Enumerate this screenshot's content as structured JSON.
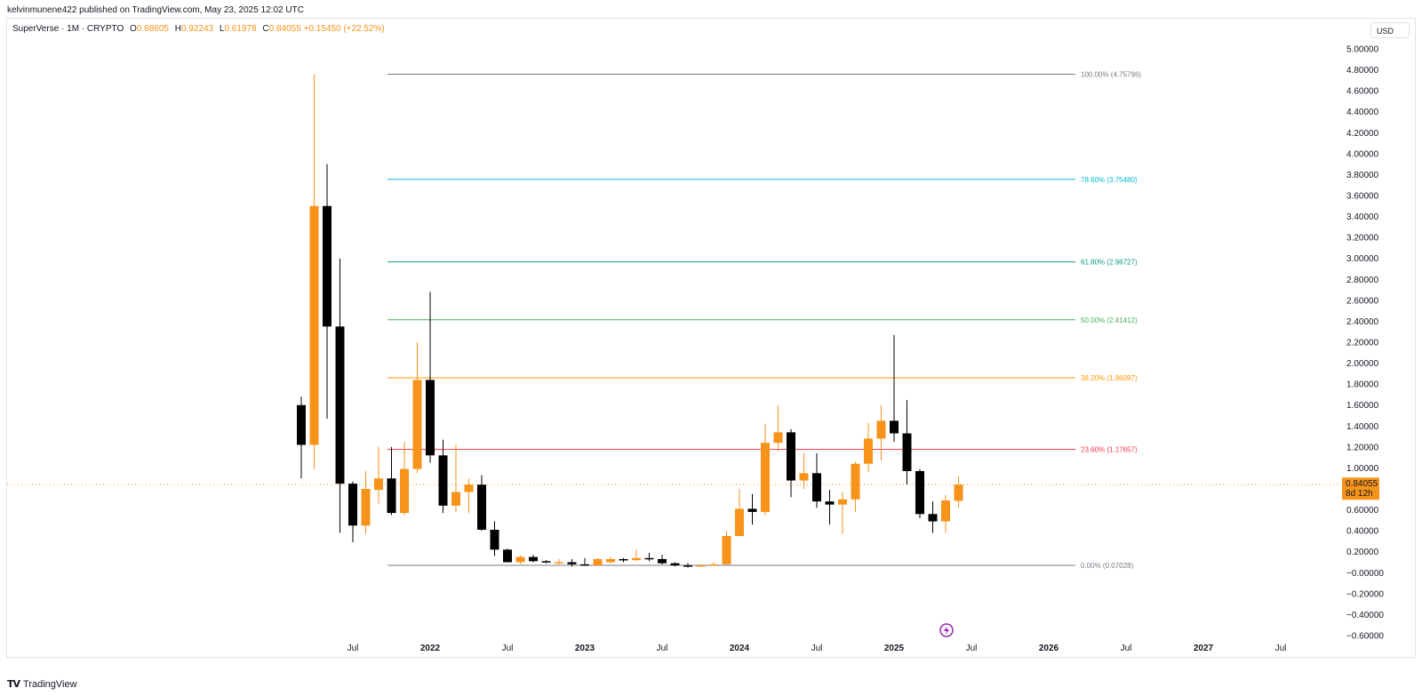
{
  "header": {
    "published": "kelvinmunene422 published on TradingView.com, May 23, 2025 12:02 UTC"
  },
  "legend": {
    "symbol": "SuperVerse · 1M · CRYPTO",
    "o_label": "O",
    "o_value": "0.68605",
    "h_label": "H",
    "h_value": "0.92243",
    "l_label": "L",
    "l_value": "0.61978",
    "c_label": "C",
    "c_value": "0.84055",
    "change": "+0.15450 (+22.52%)"
  },
  "currency": "USD",
  "footer": {
    "brand": "TradingView",
    "logo_icon": "tradingview-logo-icon"
  },
  "colors": {
    "up": "#f7931a",
    "down": "#000000",
    "axis_text": "#131722"
  },
  "chart_data": {
    "type": "candlestick",
    "interval": "1M",
    "y_range": [
      -0.6,
      5.1
    ],
    "y_ticks": [
      "5.00000",
      "4.80000",
      "4.60000",
      "4.40000",
      "4.20000",
      "4.00000",
      "3.80000",
      "3.60000",
      "3.40000",
      "3.20000",
      "3.00000",
      "2.80000",
      "2.60000",
      "2.40000",
      "2.20000",
      "2.00000",
      "1.80000",
      "1.60000",
      "1.40000",
      "1.20000",
      "1.00000",
      "0.80000",
      "0.60000",
      "0.40000",
      "0.20000",
      "−0.00000",
      "−0.20000",
      "−0.40000",
      "−0.60000"
    ],
    "x_ticks": [
      {
        "label": "Jul",
        "month": "2021-07"
      },
      {
        "label": "2022",
        "month": "2022-01"
      },
      {
        "label": "Jul",
        "month": "2022-07"
      },
      {
        "label": "2023",
        "month": "2023-01"
      },
      {
        "label": "Jul",
        "month": "2023-07"
      },
      {
        "label": "2024",
        "month": "2024-01"
      },
      {
        "label": "Jul",
        "month": "2024-07"
      },
      {
        "label": "2025",
        "month": "2025-01"
      },
      {
        "label": "Jul",
        "month": "2025-07"
      },
      {
        "label": "2026",
        "month": "2026-01"
      },
      {
        "label": "Jul",
        "month": "2026-07"
      },
      {
        "label": "2027",
        "month": "2027-01"
      },
      {
        "label": "Jul",
        "month": "2027-07"
      }
    ],
    "candles": [
      {
        "month": "2021-03",
        "o": 1.6,
        "h": 1.68,
        "l": 0.9,
        "c": 1.22
      },
      {
        "month": "2021-04",
        "o": 1.22,
        "h": 4.76,
        "l": 0.99,
        "c": 3.5
      },
      {
        "month": "2021-05",
        "o": 3.5,
        "h": 3.9,
        "l": 1.47,
        "c": 2.35
      },
      {
        "month": "2021-06",
        "o": 2.35,
        "h": 3.0,
        "l": 0.38,
        "c": 0.85
      },
      {
        "month": "2021-07",
        "o": 0.85,
        "h": 0.87,
        "l": 0.29,
        "c": 0.45
      },
      {
        "month": "2021-08",
        "o": 0.45,
        "h": 0.97,
        "l": 0.37,
        "c": 0.8
      },
      {
        "month": "2021-09",
        "o": 0.79,
        "h": 1.2,
        "l": 0.66,
        "c": 0.9
      },
      {
        "month": "2021-10",
        "o": 0.9,
        "h": 1.2,
        "l": 0.55,
        "c": 0.57
      },
      {
        "month": "2021-11",
        "o": 0.57,
        "h": 1.25,
        "l": 0.55,
        "c": 0.99
      },
      {
        "month": "2021-12",
        "o": 0.99,
        "h": 2.2,
        "l": 0.95,
        "c": 1.84
      },
      {
        "month": "2022-01",
        "o": 1.84,
        "h": 2.68,
        "l": 1.05,
        "c": 1.12
      },
      {
        "month": "2022-02",
        "o": 1.12,
        "h": 1.27,
        "l": 0.57,
        "c": 0.64
      },
      {
        "month": "2022-03",
        "o": 0.64,
        "h": 1.22,
        "l": 0.58,
        "c": 0.77
      },
      {
        "month": "2022-04",
        "o": 0.77,
        "h": 0.9,
        "l": 0.57,
        "c": 0.84
      },
      {
        "month": "2022-05",
        "o": 0.84,
        "h": 0.93,
        "l": 0.4,
        "c": 0.41
      },
      {
        "month": "2022-06",
        "o": 0.41,
        "h": 0.49,
        "l": 0.16,
        "c": 0.22
      },
      {
        "month": "2022-07",
        "o": 0.22,
        "h": 0.23,
        "l": 0.1,
        "c": 0.1
      },
      {
        "month": "2022-08",
        "o": 0.1,
        "h": 0.17,
        "l": 0.08,
        "c": 0.15
      },
      {
        "month": "2022-09",
        "o": 0.15,
        "h": 0.17,
        "l": 0.1,
        "c": 0.11
      },
      {
        "month": "2022-10",
        "o": 0.11,
        "h": 0.12,
        "l": 0.09,
        "c": 0.1
      },
      {
        "month": "2022-11",
        "o": 0.1,
        "h": 0.13,
        "l": 0.08,
        "c": 0.1
      },
      {
        "month": "2022-12",
        "o": 0.1,
        "h": 0.13,
        "l": 0.06,
        "c": 0.08
      },
      {
        "month": "2023-01",
        "o": 0.08,
        "h": 0.14,
        "l": 0.07,
        "c": 0.07
      },
      {
        "month": "2023-02",
        "o": 0.07,
        "h": 0.14,
        "l": 0.07,
        "c": 0.13
      },
      {
        "month": "2023-03",
        "o": 0.1,
        "h": 0.15,
        "l": 0.09,
        "c": 0.13
      },
      {
        "month": "2023-04",
        "o": 0.13,
        "h": 0.14,
        "l": 0.1,
        "c": 0.12
      },
      {
        "month": "2023-05",
        "o": 0.12,
        "h": 0.22,
        "l": 0.11,
        "c": 0.14
      },
      {
        "month": "2023-06",
        "o": 0.14,
        "h": 0.19,
        "l": 0.11,
        "c": 0.13
      },
      {
        "month": "2023-07",
        "o": 0.13,
        "h": 0.17,
        "l": 0.08,
        "c": 0.09
      },
      {
        "month": "2023-08",
        "o": 0.09,
        "h": 0.1,
        "l": 0.06,
        "c": 0.07
      },
      {
        "month": "2023-09",
        "o": 0.07,
        "h": 0.09,
        "l": 0.05,
        "c": 0.06
      },
      {
        "month": "2023-10",
        "o": 0.06,
        "h": 0.08,
        "l": 0.06,
        "c": 0.07
      },
      {
        "month": "2023-11",
        "o": 0.07,
        "h": 0.1,
        "l": 0.07,
        "c": 0.08
      },
      {
        "month": "2023-12",
        "o": 0.08,
        "h": 0.4,
        "l": 0.08,
        "c": 0.35
      },
      {
        "month": "2024-01",
        "o": 0.35,
        "h": 0.8,
        "l": 0.35,
        "c": 0.61
      },
      {
        "month": "2024-02",
        "o": 0.61,
        "h": 0.75,
        "l": 0.46,
        "c": 0.58
      },
      {
        "month": "2024-03",
        "o": 0.58,
        "h": 1.42,
        "l": 0.55,
        "c": 1.24
      },
      {
        "month": "2024-04",
        "o": 1.24,
        "h": 1.6,
        "l": 1.16,
        "c": 1.34
      },
      {
        "month": "2024-05",
        "o": 1.34,
        "h": 1.37,
        "l": 0.72,
        "c": 0.88
      },
      {
        "month": "2024-06",
        "o": 0.88,
        "h": 1.14,
        "l": 0.8,
        "c": 0.95
      },
      {
        "month": "2024-07",
        "o": 0.95,
        "h": 1.14,
        "l": 0.62,
        "c": 0.68
      },
      {
        "month": "2024-08",
        "o": 0.68,
        "h": 0.79,
        "l": 0.46,
        "c": 0.65
      },
      {
        "month": "2024-09",
        "o": 0.65,
        "h": 0.77,
        "l": 0.37,
        "c": 0.7
      },
      {
        "month": "2024-10",
        "o": 0.7,
        "h": 1.06,
        "l": 0.58,
        "c": 1.04
      },
      {
        "month": "2024-11",
        "o": 1.04,
        "h": 1.43,
        "l": 0.96,
        "c": 1.28
      },
      {
        "month": "2024-12",
        "o": 1.28,
        "h": 1.6,
        "l": 1.07,
        "c": 1.45
      },
      {
        "month": "2025-01",
        "o": 1.45,
        "h": 2.27,
        "l": 1.25,
        "c": 1.33
      },
      {
        "month": "2025-02",
        "o": 1.33,
        "h": 1.65,
        "l": 0.84,
        "c": 0.97
      },
      {
        "month": "2025-03",
        "o": 0.97,
        "h": 0.99,
        "l": 0.52,
        "c": 0.56
      },
      {
        "month": "2025-04",
        "o": 0.56,
        "h": 0.68,
        "l": 0.38,
        "c": 0.49
      },
      {
        "month": "2025-05",
        "o": 0.49,
        "h": 0.74,
        "l": 0.38,
        "c": 0.69
      },
      {
        "month": "2025-06",
        "o": 0.68605,
        "h": 0.92243,
        "l": 0.61978,
        "c": 0.84055
      }
    ],
    "fibonacci": {
      "start_month": "2021-09",
      "levels": [
        {
          "label": "100.00% (4.75796)",
          "value": 4.75796,
          "color": "#787b86"
        },
        {
          "label": "78.60% (3.75480)",
          "value": 3.7548,
          "color": "#00bcd4"
        },
        {
          "label": "61.80% (2.96727)",
          "value": 2.96727,
          "color": "#089981"
        },
        {
          "label": "50.00% (2.41412)",
          "value": 2.41412,
          "color": "#4caf50"
        },
        {
          "label": "38.20% (1.86097)",
          "value": 1.86097,
          "color": "#ff9800"
        },
        {
          "label": "23.60% (1.17657)",
          "value": 1.17657,
          "color": "#f23645"
        },
        {
          "label": "0.00% (0.07028)",
          "value": 0.07028,
          "color": "#787b86"
        }
      ]
    },
    "last_price": {
      "value": 0.84055,
      "label": "0.84055",
      "countdown": "8d 12h"
    }
  }
}
